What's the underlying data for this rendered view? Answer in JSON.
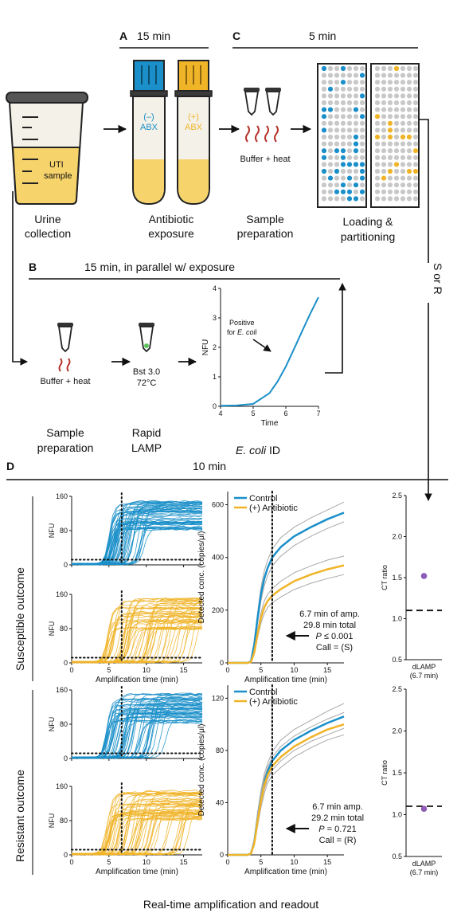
{
  "colors": {
    "blue": "#1a8fc9",
    "yellow": "#f0b429",
    "gray": "#a8a8a8",
    "red": "#b6342c",
    "dark": "#2b2b2b",
    "purple": "#8e5bb5",
    "tubeFill": "#f6d36b"
  },
  "panelA": {
    "letter": "A",
    "duration": "15 min"
  },
  "panelC": {
    "letter": "C",
    "duration": "5 min"
  },
  "panelB": {
    "letter": "B",
    "duration": "15 min, in parallel w/ exposure"
  },
  "panelD": {
    "letter": "D",
    "duration": "10 min"
  },
  "cup": {
    "label_line1": "UTI",
    "label_line2": "sample",
    "caption_line1": "Urine",
    "caption_line2": "collection"
  },
  "tubes": {
    "neg": "(–)",
    "pos": "(+)",
    "abx": "ABX",
    "caption_line1": "Antibiotic",
    "caption_line2": "exposure"
  },
  "prep": {
    "buffer": "Buffer + heat",
    "caption_line1": "Sample",
    "caption_line2": "preparation"
  },
  "chip": {
    "caption_line1": "Loading &",
    "caption_line2": "partitioning"
  },
  "sor": {
    "label": "S or R"
  },
  "prepB": {
    "buffer": "Buffer + heat",
    "caption_line1": "Sample",
    "caption_line2": "preparation"
  },
  "lamp": {
    "enzyme": "Bst 3.0",
    "temp": "72°C",
    "caption_line1": "Rapid",
    "caption_line2": "LAMP"
  },
  "ecoli": {
    "caption_italic": "E. coli",
    "caption_rest": " ID",
    "annot_line1": "Positive",
    "annot_line2_pre": "for ",
    "annot_line2_ital": "E. coli"
  },
  "rows": {
    "susceptible": "Susceptible outcome",
    "resistant": "Resistant outcome"
  },
  "small_axes": {
    "ylabel": "NFU",
    "xlabel": "Amplification time (min)"
  },
  "conc_axes": {
    "ylabel": "Detected conc. (copies/μl)",
    "xlabel": "Amplification time (min)"
  },
  "legend": {
    "control": "Control",
    "antibiotic": "(+) Antibiotic"
  },
  "ct_axes": {
    "ylabel": "CT ratio",
    "cat_line1": "dLAMP",
    "cat_line2": "(6.7 min)"
  },
  "susc_annot": {
    "l1": "6.7 min of amp.",
    "l2": "29.8 min total",
    "l3_it": "P",
    "l3": " ≤ 0.001",
    "l4": "Call = (S)"
  },
  "res_annot": {
    "l1": "6.7 min amp.",
    "l2": "29.2 min total",
    "l3_it": "P",
    "l3": " = 0.721",
    "l4": "Call = (R)"
  },
  "footer": "Real-time amplification and readout",
  "chart_data": [
    {
      "type": "line",
      "id": "ecoli-id",
      "x": [
        4,
        4.5,
        5,
        5.5,
        5.75,
        6,
        6.25,
        6.5,
        6.75,
        7
      ],
      "values": [
        0.02,
        0.03,
        0.08,
        0.45,
        0.85,
        1.35,
        1.95,
        2.55,
        3.15,
        3.7
      ],
      "xlim": [
        4,
        7
      ],
      "ylim": [
        0,
        4
      ],
      "xticks": [
        4,
        5,
        6,
        7
      ],
      "yticks": [
        0,
        1,
        2,
        3,
        4
      ],
      "xlabel": "Time",
      "ylabel": "NFU"
    },
    {
      "type": "line",
      "id": "susc-control-traces",
      "xlim": [
        0,
        17.5
      ],
      "ylim": [
        0,
        160
      ],
      "xticks": [
        0,
        5,
        10,
        15
      ],
      "yticks": [
        0,
        80,
        160
      ],
      "threshold": 12,
      "timepoint": 6.7,
      "onset_min": 4.2,
      "onset_max": 9,
      "plateau_min": 80,
      "plateau_max": 148
    },
    {
      "type": "line",
      "id": "susc-abx-traces",
      "xlim": [
        0,
        17.5
      ],
      "ylim": [
        0,
        160
      ],
      "xticks": [
        0,
        5,
        10,
        15
      ],
      "yticks": [
        0,
        80,
        160
      ],
      "threshold": 12,
      "timepoint": 6.7,
      "onset_min": 4,
      "onset_max": 16.5,
      "plateau_min": 75,
      "plateau_max": 150
    },
    {
      "type": "line",
      "id": "susc-conc",
      "x": [
        0,
        3,
        3.5,
        4,
        4.5,
        5,
        5.5,
        6,
        6.7,
        8,
        10,
        12.5,
        15,
        17.5
      ],
      "series": [
        {
          "name": "Control",
          "values": [
            0,
            0,
            5,
            70,
            170,
            260,
            320,
            360,
            400,
            440,
            480,
            515,
            545,
            570
          ],
          "lower": [
            0,
            0,
            4,
            62,
            152,
            235,
            292,
            330,
            368,
            405,
            445,
            480,
            510,
            535
          ],
          "upper": [
            0,
            0,
            6,
            78,
            188,
            285,
            348,
            390,
            432,
            475,
            515,
            550,
            580,
            610
          ]
        },
        {
          "name": "(+) Antibiotic",
          "values": [
            0,
            0,
            3,
            40,
            110,
            170,
            210,
            235,
            255,
            280,
            310,
            335,
            355,
            370
          ],
          "lower": [
            0,
            0,
            2,
            34,
            96,
            150,
            186,
            210,
            228,
            250,
            278,
            302,
            320,
            335
          ],
          "upper": [
            0,
            0,
            4,
            46,
            124,
            190,
            234,
            260,
            282,
            310,
            342,
            368,
            390,
            405
          ]
        }
      ],
      "xlim": [
        0,
        17.5
      ],
      "ylim": [
        0,
        650
      ],
      "xticks": [
        0,
        5,
        10,
        15
      ],
      "yticks": [
        0,
        200,
        400,
        600
      ],
      "timepoint": 6.7
    },
    {
      "type": "scatter",
      "id": "susc-ct",
      "categories": [
        "dLAMP (6.7 min)"
      ],
      "values": [
        1.52
      ],
      "threshold": 1.1,
      "ylim": [
        0.5,
        2.5
      ],
      "yticks": [
        0.5,
        1.0,
        1.5,
        2.0,
        2.5
      ]
    },
    {
      "type": "line",
      "id": "res-control-traces",
      "xlim": [
        0,
        17.5
      ],
      "ylim": [
        0,
        160
      ],
      "xticks": [
        0,
        5,
        10,
        15
      ],
      "yticks": [
        0,
        80,
        160
      ],
      "threshold": 12,
      "timepoint": 6.7,
      "onset_min": 3.8,
      "onset_max": 12,
      "plateau_min": 80,
      "plateau_max": 150
    },
    {
      "type": "line",
      "id": "res-abx-traces",
      "xlim": [
        0,
        17.5
      ],
      "ylim": [
        0,
        160
      ],
      "xticks": [
        0,
        5,
        10,
        15
      ],
      "yticks": [
        0,
        80,
        160
      ],
      "threshold": 12,
      "timepoint": 6.7,
      "onset_min": 3.8,
      "onset_max": 15,
      "plateau_min": 80,
      "plateau_max": 148
    },
    {
      "type": "line",
      "id": "res-conc",
      "x": [
        0,
        3,
        3.5,
        4,
        4.5,
        5,
        5.5,
        6,
        6.7,
        8,
        10,
        12.5,
        15,
        17.5
      ],
      "series": [
        {
          "name": "Control",
          "values": [
            0,
            0,
            1,
            10,
            28,
            44,
            56,
            64,
            72,
            80,
            88,
            95,
            101,
            106
          ],
          "lower": [
            0,
            0,
            1,
            8,
            24,
            39,
            50,
            58,
            65,
            72,
            80,
            87,
            92,
            97
          ],
          "upper": [
            0,
            0,
            2,
            12,
            32,
            49,
            62,
            70,
            79,
            88,
            96,
            103,
            110,
            116
          ]
        },
        {
          "name": "(+) Antibiotic",
          "values": [
            0,
            0,
            1,
            9,
            26,
            41,
            53,
            61,
            68,
            75,
            83,
            90,
            96,
            100
          ],
          "lower": [
            0,
            0,
            1,
            7,
            22,
            36,
            47,
            55,
            61,
            67,
            75,
            82,
            88,
            92
          ],
          "upper": [
            0,
            0,
            2,
            11,
            30,
            46,
            59,
            67,
            75,
            83,
            91,
            98,
            104,
            109
          ]
        }
      ],
      "xlim": [
        0,
        17.5
      ],
      "ylim": [
        0,
        130
      ],
      "xticks": [
        0,
        5,
        10,
        15
      ],
      "yticks": [
        0,
        40,
        80,
        120
      ],
      "timepoint": 6.7
    },
    {
      "type": "scatter",
      "id": "res-ct",
      "categories": [
        "dLAMP (6.7 min)"
      ],
      "values": [
        1.07
      ],
      "threshold": 1.1,
      "ylim": [
        0.5,
        2.5
      ],
      "yticks": [
        0.5,
        1.0,
        1.5,
        2.0,
        2.5
      ]
    }
  ]
}
